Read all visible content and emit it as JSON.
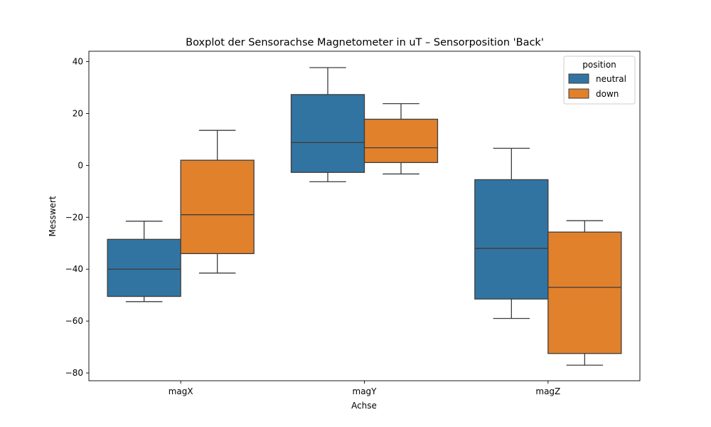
{
  "chart_data": {
    "type": "box",
    "title": "Boxplot der Sensorachse Magnetometer in uT – Sensorposition 'Back'",
    "xlabel": "Achse",
    "ylabel": "Messwert",
    "ylim": [
      -83,
      44
    ],
    "yticks": [
      40,
      20,
      0,
      -20,
      -40,
      -60,
      -80
    ],
    "categories": [
      "magX",
      "magY",
      "magZ"
    ],
    "grid": false,
    "legend": {
      "title": "position",
      "placement": "top-right"
    },
    "series": [
      {
        "name": "neutral",
        "color": "#3274a1",
        "boxes": [
          {
            "whisker_low": -52.5,
            "q1": -50.5,
            "median": -40,
            "q3": -28.5,
            "whisker_high": -21.5
          },
          {
            "whisker_low": -6.3,
            "q1": -2.7,
            "median": 8.8,
            "q3": 27.3,
            "whisker_high": 37.7
          },
          {
            "whisker_low": -59,
            "q1": -51.5,
            "median": -32,
            "q3": -5.5,
            "whisker_high": 6.6
          }
        ]
      },
      {
        "name": "down",
        "color": "#e1812c",
        "boxes": [
          {
            "whisker_low": -41.5,
            "q1": -34,
            "median": -19,
            "q3": 2,
            "whisker_high": 13.5
          },
          {
            "whisker_low": -3.3,
            "q1": 1.1,
            "median": 6.8,
            "q3": 17.8,
            "whisker_high": 23.8
          },
          {
            "whisker_low": -77,
            "q1": -72.5,
            "median": -47,
            "q3": -25.7,
            "whisker_high": -21.3
          }
        ]
      }
    ]
  }
}
